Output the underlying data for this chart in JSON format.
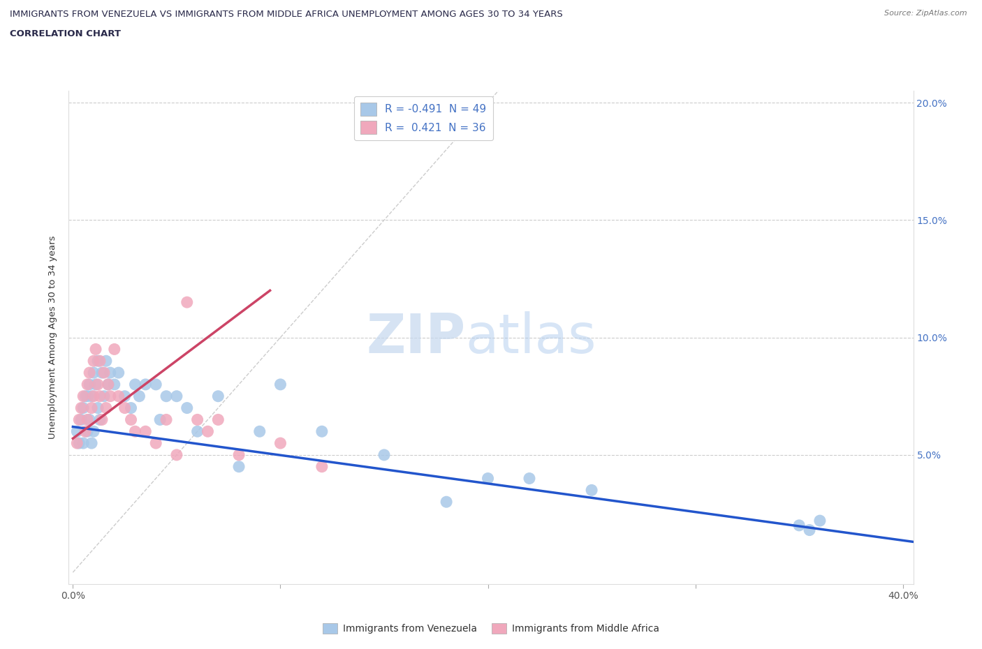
{
  "title_line1": "IMMIGRANTS FROM VENEZUELA VS IMMIGRANTS FROM MIDDLE AFRICA UNEMPLOYMENT AMONG AGES 30 TO 34 YEARS",
  "title_line2": "CORRELATION CHART",
  "source": "Source: ZipAtlas.com",
  "ylabel": "Unemployment Among Ages 30 to 34 years",
  "xlim": [
    -0.002,
    0.405
  ],
  "ylim": [
    -0.005,
    0.205
  ],
  "blue_R": -0.491,
  "blue_N": 49,
  "pink_R": 0.421,
  "pink_N": 36,
  "blue_color": "#a8c8e8",
  "pink_color": "#f0a8bc",
  "blue_line_color": "#2255cc",
  "pink_line_color": "#cc4466",
  "ref_line_color": "#cccccc",
  "legend_label_blue": "Immigrants from Venezuela",
  "legend_label_pink": "Immigrants from Middle Africa",
  "watermark1": "ZIP",
  "watermark2": "atlas",
  "blue_scatter_x": [
    0.002,
    0.003,
    0.004,
    0.005,
    0.005,
    0.006,
    0.007,
    0.007,
    0.008,
    0.008,
    0.009,
    0.009,
    0.01,
    0.01,
    0.011,
    0.012,
    0.012,
    0.013,
    0.014,
    0.015,
    0.016,
    0.017,
    0.018,
    0.02,
    0.022,
    0.025,
    0.028,
    0.03,
    0.032,
    0.035,
    0.04,
    0.042,
    0.045,
    0.05,
    0.055,
    0.06,
    0.07,
    0.08,
    0.09,
    0.1,
    0.12,
    0.15,
    0.18,
    0.2,
    0.22,
    0.25,
    0.35,
    0.355,
    0.36
  ],
  "blue_scatter_y": [
    0.06,
    0.055,
    0.065,
    0.07,
    0.055,
    0.075,
    0.06,
    0.075,
    0.065,
    0.08,
    0.075,
    0.055,
    0.085,
    0.06,
    0.08,
    0.07,
    0.09,
    0.065,
    0.085,
    0.075,
    0.09,
    0.08,
    0.085,
    0.08,
    0.085,
    0.075,
    0.07,
    0.08,
    0.075,
    0.08,
    0.08,
    0.065,
    0.075,
    0.075,
    0.07,
    0.06,
    0.075,
    0.045,
    0.06,
    0.08,
    0.06,
    0.05,
    0.03,
    0.04,
    0.04,
    0.035,
    0.02,
    0.018,
    0.022
  ],
  "pink_scatter_x": [
    0.002,
    0.003,
    0.004,
    0.005,
    0.006,
    0.007,
    0.007,
    0.008,
    0.009,
    0.01,
    0.01,
    0.011,
    0.012,
    0.013,
    0.013,
    0.014,
    0.015,
    0.016,
    0.017,
    0.018,
    0.02,
    0.022,
    0.025,
    0.028,
    0.03,
    0.035,
    0.04,
    0.045,
    0.05,
    0.055,
    0.06,
    0.065,
    0.07,
    0.08,
    0.1,
    0.12
  ],
  "pink_scatter_y": [
    0.055,
    0.065,
    0.07,
    0.075,
    0.06,
    0.08,
    0.065,
    0.085,
    0.07,
    0.09,
    0.075,
    0.095,
    0.08,
    0.075,
    0.09,
    0.065,
    0.085,
    0.07,
    0.08,
    0.075,
    0.095,
    0.075,
    0.07,
    0.065,
    0.06,
    0.06,
    0.055,
    0.065,
    0.05,
    0.115,
    0.065,
    0.06,
    0.065,
    0.05,
    0.055,
    0.045
  ],
  "blue_trend_x0": 0.0,
  "blue_trend_x1": 0.405,
  "blue_trend_y0": 0.062,
  "blue_trend_y1": 0.013,
  "pink_trend_x0": 0.0,
  "pink_trend_x1": 0.095,
  "pink_trend_y0": 0.057,
  "pink_trend_y1": 0.12,
  "ref_line_x0": 0.0,
  "ref_line_x1": 0.205,
  "ref_line_y0": 0.0,
  "ref_line_y1": 0.205
}
